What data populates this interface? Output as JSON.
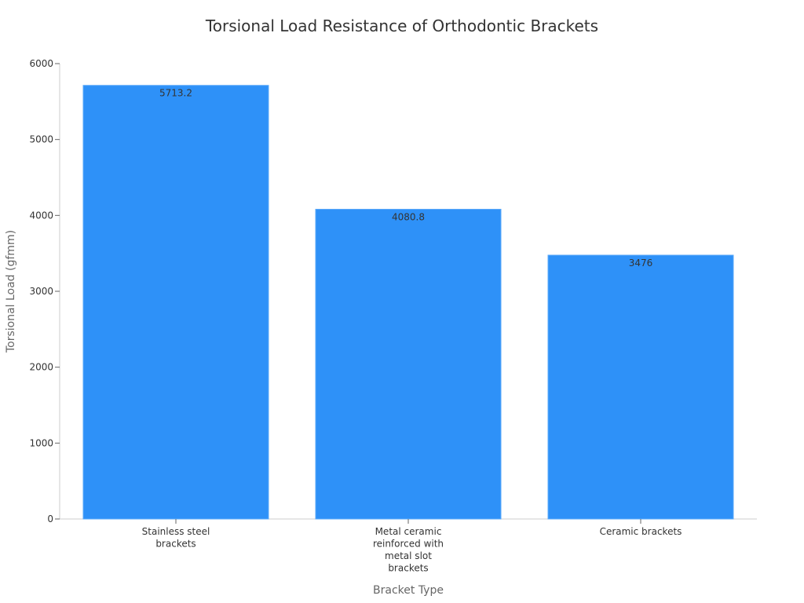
{
  "chart_data": {
    "type": "bar",
    "title": "Torsional Load Resistance of Orthodontic Brackets",
    "xlabel": "Bracket Type",
    "ylabel": "Torsional Load (gfmm)",
    "categories": [
      "Stainless steel brackets",
      "Metal ceramic reinforced with metal slot brackets",
      "Ceramic brackets"
    ],
    "category_lines": [
      [
        "Stainless steel",
        "brackets"
      ],
      [
        "Metal ceramic",
        "reinforced with",
        "metal slot",
        "brackets"
      ],
      [
        "Ceramic brackets"
      ]
    ],
    "values": [
      5713.2,
      4080.8,
      3476
    ],
    "value_labels": [
      "5713.2",
      "4080.8",
      "3476"
    ],
    "ylim": [
      0,
      6000
    ],
    "yticks": [
      0,
      1000,
      2000,
      3000,
      4000,
      5000,
      6000
    ],
    "grid": false,
    "legend": null,
    "bar_color": "#2e91f8"
  }
}
